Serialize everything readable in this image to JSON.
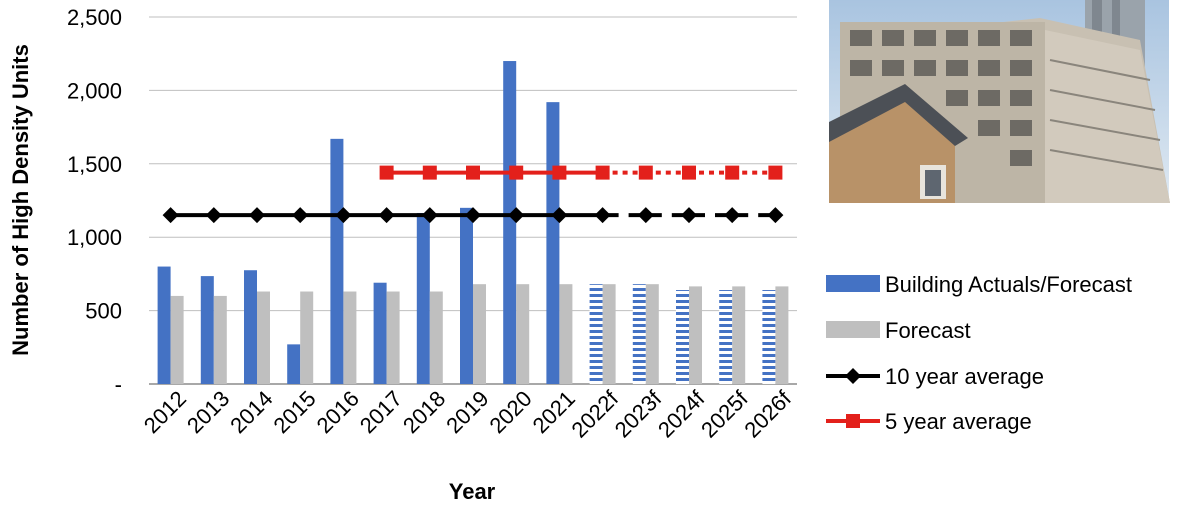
{
  "chart_data": {
    "type": "bar",
    "categories": [
      "2012",
      "2013",
      "2014",
      "2015",
      "2016",
      "2017",
      "2018",
      "2019",
      "2020",
      "2021",
      "2022f",
      "2023f",
      "2024f",
      "2025f",
      "2026f"
    ],
    "xlabel": "Year",
    "ylabel": "Number of High Density Units",
    "ylim": [
      0,
      2500
    ],
    "yticks": [
      {
        "value": 0,
        "label": "-"
      },
      {
        "value": 500,
        "label": "500"
      },
      {
        "value": 1000,
        "label": "1,000"
      },
      {
        "value": 1500,
        "label": "1,500"
      },
      {
        "value": 2000,
        "label": "2,000"
      },
      {
        "value": 2500,
        "label": "2,500"
      }
    ],
    "grid": true,
    "legend_position": "right",
    "series": [
      {
        "name": "Building Actuals/Forecast",
        "kind": "bar",
        "color": "#4472C4",
        "values": [
          800,
          735,
          775,
          270,
          1670,
          690,
          1165,
          1200,
          2200,
          1920,
          680,
          680,
          640,
          640,
          640
        ],
        "striped_from_index": 10
      },
      {
        "name": "Forecast",
        "kind": "bar",
        "color": "#BFBFBF",
        "values": [
          600,
          600,
          630,
          630,
          630,
          630,
          630,
          680,
          680,
          680,
          680,
          680,
          665,
          665,
          665
        ]
      },
      {
        "name": "10 year average",
        "kind": "line",
        "color": "#000000",
        "marker": "diamond",
        "values": [
          1150,
          1150,
          1150,
          1150,
          1150,
          1150,
          1150,
          1150,
          1150,
          1150,
          1150,
          1150,
          1150,
          1150,
          1150
        ],
        "dashed_from_index": 10
      },
      {
        "name": "5 year average",
        "kind": "line",
        "color": "#E3201B",
        "marker": "square",
        "values": [
          null,
          null,
          null,
          null,
          null,
          1440,
          1440,
          1440,
          1440,
          1440,
          1440,
          1440,
          1440,
          1440,
          1440
        ],
        "dashed_from_index": 10
      }
    ]
  }
}
